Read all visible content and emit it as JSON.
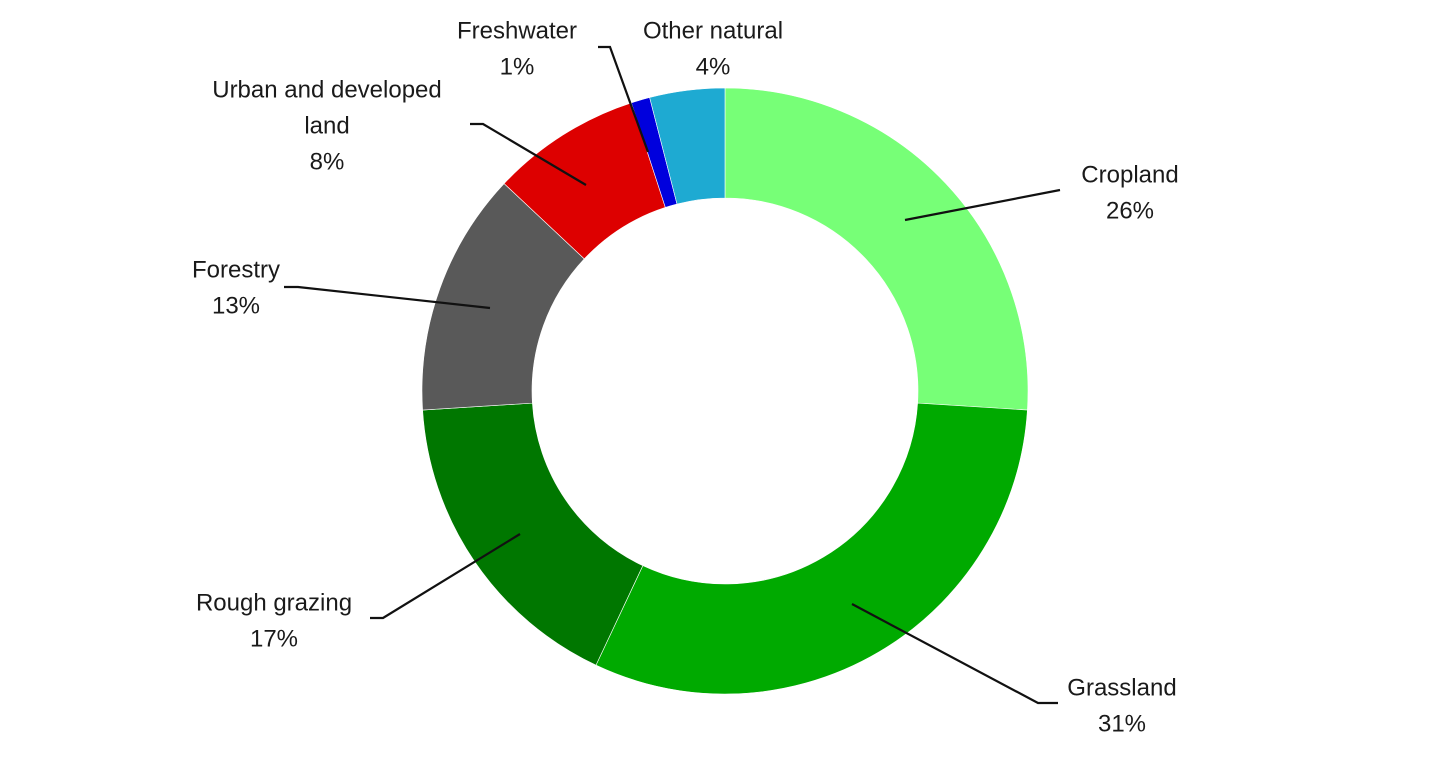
{
  "chart_data": {
    "type": "pie",
    "variant": "donut",
    "title": "",
    "slices": [
      {
        "label": "Cropland",
        "value": 26,
        "display": "26%",
        "color": "#77ff77"
      },
      {
        "label": "Grassland",
        "value": 31,
        "display": "31%",
        "color": "#00aa00"
      },
      {
        "label": "Rough grazing",
        "value": 17,
        "display": "17%",
        "color": "#007700"
      },
      {
        "label": "Forestry",
        "value": 13,
        "display": "13%",
        "color": "#595959"
      },
      {
        "label": "Urban and developed land",
        "label_lines": [
          "Urban and developed",
          "land"
        ],
        "value": 8,
        "display": "8%",
        "color": "#dd0000"
      },
      {
        "label": "Freshwater",
        "value": 1,
        "display": "1%",
        "color": "#0000dd"
      },
      {
        "label": "Other natural",
        "value": 4,
        "display": "4%",
        "color": "#1eaad2"
      }
    ],
    "legend": "none",
    "data_labels": "outside with leader lines"
  }
}
